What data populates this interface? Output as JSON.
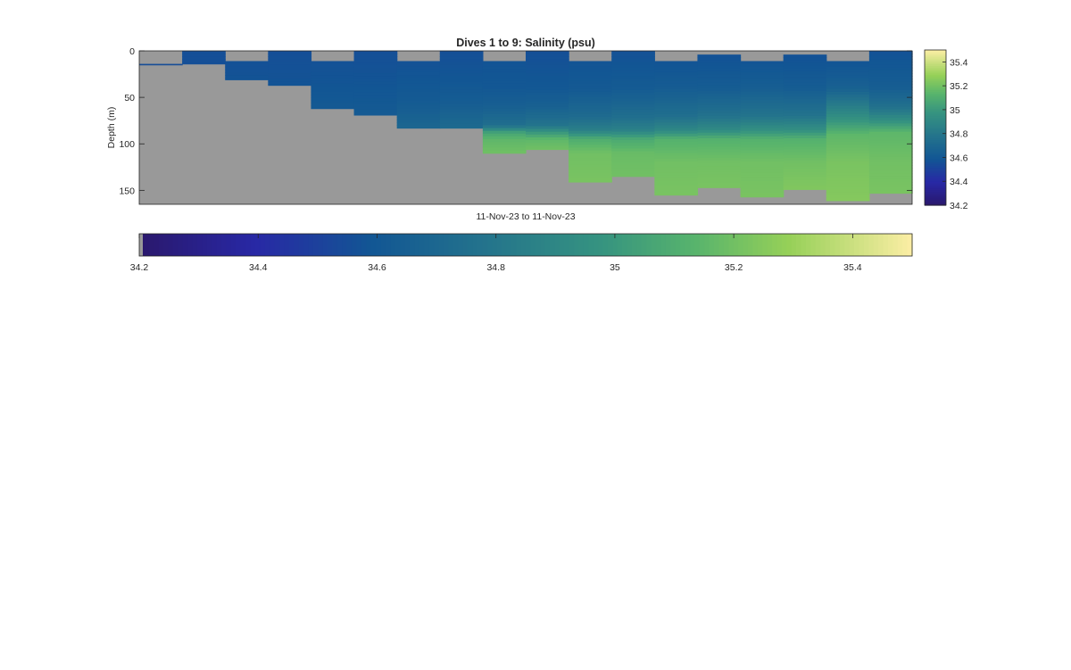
{
  "chart_data": [
    {
      "type": "heatmap",
      "title": "Dives 1 to 9: Salinity (psu)",
      "xlabel": "11-Nov-23 to 11-Nov-23",
      "ylabel": "Depth (m)",
      "ylim": [
        0,
        165
      ],
      "y_reversed": true,
      "yticks": [
        0,
        50,
        100,
        150
      ],
      "grid": false,
      "missing_color": "#999999",
      "colormap": "haline",
      "clim": [
        34.2,
        35.5
      ],
      "colorbar_ticks": [
        34.2,
        34.4,
        34.6,
        34.8,
        35,
        35.2,
        35.4
      ],
      "columns": [
        {
          "profile": 1,
          "start_depth": 14,
          "max_depth": 15,
          "depths": [
            14,
            15
          ],
          "salinity": [
            34.55,
            34.55
          ]
        },
        {
          "profile": 2,
          "start_depth": 0,
          "max_depth": 14,
          "depths": [
            0,
            14
          ],
          "salinity": [
            34.56,
            34.56
          ]
        },
        {
          "profile": 3,
          "start_depth": 11,
          "max_depth": 31,
          "depths": [
            11,
            20,
            31
          ],
          "salinity": [
            34.57,
            34.57,
            34.58
          ]
        },
        {
          "profile": 4,
          "start_depth": 0,
          "max_depth": 37,
          "depths": [
            0,
            20,
            37
          ],
          "salinity": [
            34.56,
            34.57,
            34.58
          ]
        },
        {
          "profile": 5,
          "start_depth": 11,
          "max_depth": 62,
          "depths": [
            11,
            30,
            50,
            62
          ],
          "salinity": [
            34.57,
            34.58,
            34.6,
            34.61
          ]
        },
        {
          "profile": 6,
          "start_depth": 0,
          "max_depth": 69,
          "depths": [
            0,
            30,
            50,
            69
          ],
          "salinity": [
            34.56,
            34.58,
            34.6,
            34.62
          ]
        },
        {
          "profile": 7,
          "start_depth": 11,
          "max_depth": 83,
          "depths": [
            11,
            30,
            55,
            70,
            83
          ],
          "salinity": [
            34.57,
            34.59,
            34.62,
            34.66,
            34.7
          ]
        },
        {
          "profile": 8,
          "start_depth": 0,
          "max_depth": 83,
          "depths": [
            0,
            30,
            55,
            70,
            83
          ],
          "salinity": [
            34.56,
            34.59,
            34.63,
            34.68,
            34.72
          ]
        },
        {
          "profile": 9,
          "start_depth": 11,
          "max_depth": 110,
          "depths": [
            11,
            40,
            60,
            80,
            88,
            95,
            110
          ],
          "salinity": [
            34.58,
            34.6,
            34.65,
            34.75,
            35.05,
            35.15,
            35.2
          ]
        },
        {
          "profile": 10,
          "start_depth": 0,
          "max_depth": 106,
          "depths": [
            0,
            40,
            60,
            80,
            88,
            95,
            106
          ],
          "salinity": [
            34.56,
            34.6,
            34.66,
            34.78,
            35.0,
            35.15,
            35.2
          ]
        },
        {
          "profile": 11,
          "start_depth": 11,
          "max_depth": 141,
          "depths": [
            11,
            40,
            70,
            85,
            95,
            110,
            141
          ],
          "salinity": [
            34.58,
            34.61,
            34.72,
            34.85,
            35.1,
            35.2,
            35.22
          ]
        },
        {
          "profile": 12,
          "start_depth": 0,
          "max_depth": 135,
          "depths": [
            0,
            40,
            70,
            85,
            95,
            110,
            135
          ],
          "salinity": [
            34.57,
            34.62,
            34.74,
            34.86,
            35.08,
            35.18,
            35.2
          ]
        },
        {
          "profile": 13,
          "start_depth": 11,
          "max_depth": 155,
          "depths": [
            11,
            40,
            70,
            85,
            95,
            120,
            155
          ],
          "salinity": [
            34.58,
            34.63,
            34.75,
            34.9,
            35.12,
            35.2,
            35.22
          ]
        },
        {
          "profile": 14,
          "start_depth": 4,
          "max_depth": 147,
          "depths": [
            4,
            40,
            70,
            85,
            95,
            120,
            147
          ],
          "salinity": [
            34.57,
            34.63,
            34.77,
            34.92,
            35.12,
            35.2,
            35.22
          ]
        },
        {
          "profile": 15,
          "start_depth": 11,
          "max_depth": 157,
          "depths": [
            11,
            40,
            70,
            85,
            95,
            120,
            157
          ],
          "salinity": [
            34.58,
            34.64,
            34.78,
            34.95,
            35.12,
            35.2,
            35.22
          ]
        },
        {
          "profile": 16,
          "start_depth": 4,
          "max_depth": 149,
          "depths": [
            4,
            40,
            70,
            85,
            95,
            120,
            149
          ],
          "salinity": [
            34.57,
            34.63,
            34.78,
            34.95,
            35.12,
            35.2,
            35.24
          ]
        },
        {
          "profile": 17,
          "start_depth": 11,
          "max_depth": 161,
          "depths": [
            11,
            40,
            55,
            75,
            90,
            120,
            161
          ],
          "salinity": [
            34.58,
            34.66,
            34.8,
            34.98,
            35.15,
            35.22,
            35.25
          ]
        },
        {
          "profile": 18,
          "start_depth": 0,
          "max_depth": 153,
          "depths": [
            0,
            40,
            60,
            75,
            88,
            120,
            153
          ],
          "salinity": [
            34.57,
            34.64,
            34.76,
            34.95,
            35.15,
            35.2,
            35.22
          ]
        }
      ]
    }
  ]
}
